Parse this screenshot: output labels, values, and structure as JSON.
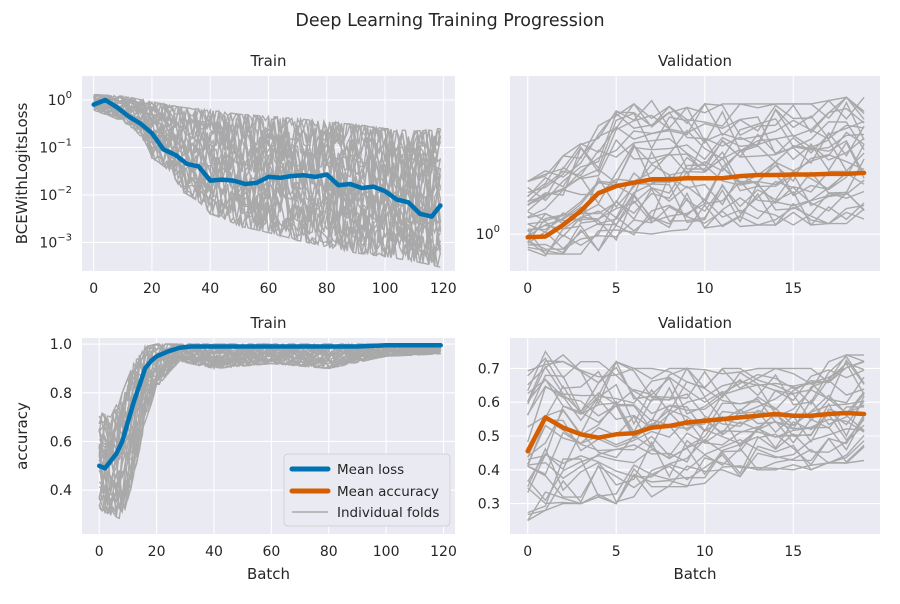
{
  "figure": {
    "title": "Deep Learning Training Progression"
  },
  "legend": {
    "placement": "lower-right of bottom-left panel",
    "items": [
      {
        "label": "Mean loss",
        "color": "#0072b2"
      },
      {
        "label": "Mean accuracy",
        "color": "#d55e00"
      },
      {
        "label": "Individual folds",
        "color": "#a9a9a9"
      }
    ]
  },
  "colors": {
    "panel_bg": "#eaeaf2",
    "mean_loss": "#0072b2",
    "mean_accuracy": "#d55e00",
    "folds": "#a9a9a9"
  },
  "chart_data": [
    {
      "id": "train_loss",
      "type": "line",
      "title": "Train",
      "xlabel": "",
      "ylabel": "BCEWithLogitsLoss",
      "yscale": "log",
      "xlim": [
        -4,
        124
      ],
      "ylim": [
        0.00025,
        3.2
      ],
      "xticks": [
        0,
        20,
        40,
        60,
        80,
        100,
        120
      ],
      "yticks": [
        {
          "value": 1,
          "base": "10",
          "exp": "0"
        },
        {
          "value": 0.1,
          "base": "10",
          "exp": "−1"
        },
        {
          "value": 0.01,
          "base": "10",
          "exp": "−2"
        },
        {
          "value": 0.001,
          "base": "10",
          "exp": "−3"
        }
      ],
      "grid": true,
      "series": [
        {
          "name": "Mean loss",
          "x": [
            0,
            4,
            8,
            12,
            16,
            20,
            24,
            28,
            32,
            36,
            40,
            44,
            48,
            52,
            56,
            60,
            64,
            68,
            72,
            76,
            80,
            84,
            88,
            92,
            96,
            100,
            104,
            108,
            112,
            116,
            119
          ],
          "values": [
            0.8,
            1.0,
            0.7,
            0.45,
            0.32,
            0.2,
            0.09,
            0.07,
            0.045,
            0.04,
            0.02,
            0.021,
            0.02,
            0.017,
            0.018,
            0.024,
            0.023,
            0.025,
            0.026,
            0.024,
            0.027,
            0.016,
            0.017,
            0.014,
            0.015,
            0.012,
            0.008,
            0.007,
            0.004,
            0.0035,
            0.006
          ]
        }
      ],
      "folds": {
        "label": "Individual folds",
        "count": 30,
        "x": [
          0,
          10,
          20,
          30,
          40,
          50,
          60,
          70,
          80,
          90,
          100,
          110,
          119
        ],
        "low": [
          0.6,
          0.35,
          0.06,
          0.012,
          0.004,
          0.0022,
          0.0016,
          0.0011,
          0.0008,
          0.0006,
          0.0005,
          0.0004,
          0.0003
        ],
        "high": [
          1.3,
          1.2,
          0.9,
          0.7,
          0.6,
          0.5,
          0.45,
          0.4,
          0.35,
          0.3,
          0.25,
          0.22,
          0.25
        ]
      }
    },
    {
      "id": "val_loss",
      "type": "line",
      "title": "Validation",
      "xlabel": "",
      "ylabel": "",
      "yscale": "log",
      "xlim": [
        -1,
        19.9
      ],
      "ylim": [
        0.79,
        2.75
      ],
      "xticks": [
        0,
        5,
        10,
        15
      ],
      "yticks": [
        {
          "value": 1,
          "base": "10",
          "exp": "0"
        }
      ],
      "grid": true,
      "series": [
        {
          "name": "Mean accuracy",
          "x": [
            0,
            1,
            2,
            3,
            4,
            5,
            6,
            7,
            8,
            9,
            10,
            11,
            12,
            13,
            14,
            15,
            16,
            17,
            18,
            19
          ],
          "values": [
            0.98,
            0.985,
            1.06,
            1.16,
            1.3,
            1.36,
            1.39,
            1.42,
            1.42,
            1.43,
            1.43,
            1.43,
            1.45,
            1.46,
            1.46,
            1.465,
            1.465,
            1.47,
            1.47,
            1.48
          ]
        }
      ],
      "folds": {
        "label": "Individual folds",
        "count": 30,
        "x": [
          0,
          1,
          2,
          3,
          4,
          5,
          6,
          7,
          8,
          9,
          10,
          11,
          12,
          13,
          14,
          15,
          16,
          17,
          18,
          19
        ],
        "low": [
          0.88,
          0.87,
          0.88,
          0.88,
          0.9,
          0.93,
          0.98,
          1.0,
          1.02,
          1.03,
          1.04,
          1.05,
          1.05,
          1.06,
          1.06,
          1.06,
          1.06,
          1.07,
          1.07,
          1.08
        ],
        "high": [
          1.4,
          1.5,
          1.65,
          1.85,
          2.0,
          2.2,
          2.3,
          2.35,
          2.3,
          2.25,
          2.3,
          2.3,
          2.3,
          2.3,
          2.3,
          2.3,
          2.3,
          2.35,
          2.4,
          2.4
        ]
      }
    },
    {
      "id": "train_acc",
      "type": "line",
      "title": "Train",
      "xlabel": "Batch",
      "ylabel": "accuracy",
      "yscale": "linear",
      "xlim": [
        -6,
        124
      ],
      "ylim": [
        0.22,
        1.025
      ],
      "xticks": [
        0,
        20,
        40,
        60,
        80,
        100,
        120
      ],
      "yticks": [
        {
          "value": 0.4,
          "label": "0.4"
        },
        {
          "value": 0.6,
          "label": "0.6"
        },
        {
          "value": 0.8,
          "label": "0.8"
        },
        {
          "value": 1.0,
          "label": "1.0"
        }
      ],
      "grid": true,
      "series": [
        {
          "name": "Mean loss",
          "x": [
            0,
            2,
            4,
            6,
            8,
            10,
            12,
            14,
            16,
            18,
            20,
            24,
            28,
            32,
            36,
            40,
            50,
            60,
            70,
            80,
            90,
            100,
            110,
            119
          ],
          "values": [
            0.5,
            0.49,
            0.52,
            0.55,
            0.6,
            0.68,
            0.76,
            0.83,
            0.9,
            0.93,
            0.95,
            0.97,
            0.985,
            0.99,
            0.99,
            0.99,
            0.99,
            0.99,
            0.99,
            0.99,
            0.99,
            0.995,
            0.995,
            0.995
          ]
        }
      ],
      "folds": {
        "label": "Individual folds",
        "count": 30,
        "x": [
          0,
          4,
          8,
          12,
          16,
          20,
          24,
          28,
          40,
          60,
          80,
          100,
          119
        ],
        "low": [
          0.32,
          0.3,
          0.28,
          0.45,
          0.68,
          0.82,
          0.88,
          0.93,
          0.9,
          0.92,
          0.9,
          0.95,
          0.96
        ],
        "high": [
          0.72,
          0.7,
          0.8,
          0.92,
          0.99,
          1.0,
          1.0,
          1.0,
          1.0,
          1.0,
          1.0,
          1.0,
          1.0
        ]
      }
    },
    {
      "id": "val_acc",
      "type": "line",
      "title": "Validation",
      "xlabel": "Batch",
      "ylabel": "",
      "yscale": "linear",
      "xlim": [
        -1,
        19.9
      ],
      "ylim": [
        0.21,
        0.79
      ],
      "xticks": [
        0,
        5,
        10,
        15
      ],
      "yticks": [
        {
          "value": 0.3,
          "label": "0.3"
        },
        {
          "value": 0.4,
          "label": "0.4"
        },
        {
          "value": 0.5,
          "label": "0.5"
        },
        {
          "value": 0.6,
          "label": "0.6"
        },
        {
          "value": 0.7,
          "label": "0.7"
        }
      ],
      "grid": true,
      "series": [
        {
          "name": "Mean accuracy",
          "x": [
            0,
            1,
            2,
            3,
            4,
            5,
            6,
            7,
            8,
            9,
            10,
            11,
            12,
            13,
            14,
            15,
            16,
            17,
            18,
            19
          ],
          "values": [
            0.455,
            0.555,
            0.525,
            0.505,
            0.495,
            0.505,
            0.508,
            0.525,
            0.53,
            0.54,
            0.545,
            0.55,
            0.555,
            0.56,
            0.565,
            0.56,
            0.56,
            0.565,
            0.568,
            0.565
          ]
        }
      ],
      "folds": {
        "label": "Individual folds",
        "count": 30,
        "x": [
          0,
          1,
          2,
          3,
          4,
          5,
          6,
          7,
          8,
          9,
          10,
          11,
          12,
          13,
          14,
          15,
          16,
          17,
          18,
          19
        ],
        "low": [
          0.25,
          0.28,
          0.3,
          0.3,
          0.32,
          0.3,
          0.32,
          0.32,
          0.35,
          0.35,
          0.36,
          0.38,
          0.38,
          0.4,
          0.4,
          0.4,
          0.4,
          0.42,
          0.42,
          0.42
        ],
        "high": [
          0.7,
          0.75,
          0.74,
          0.72,
          0.72,
          0.72,
          0.7,
          0.7,
          0.7,
          0.7,
          0.7,
          0.7,
          0.7,
          0.7,
          0.7,
          0.7,
          0.7,
          0.72,
          0.74,
          0.76
        ]
      }
    }
  ]
}
